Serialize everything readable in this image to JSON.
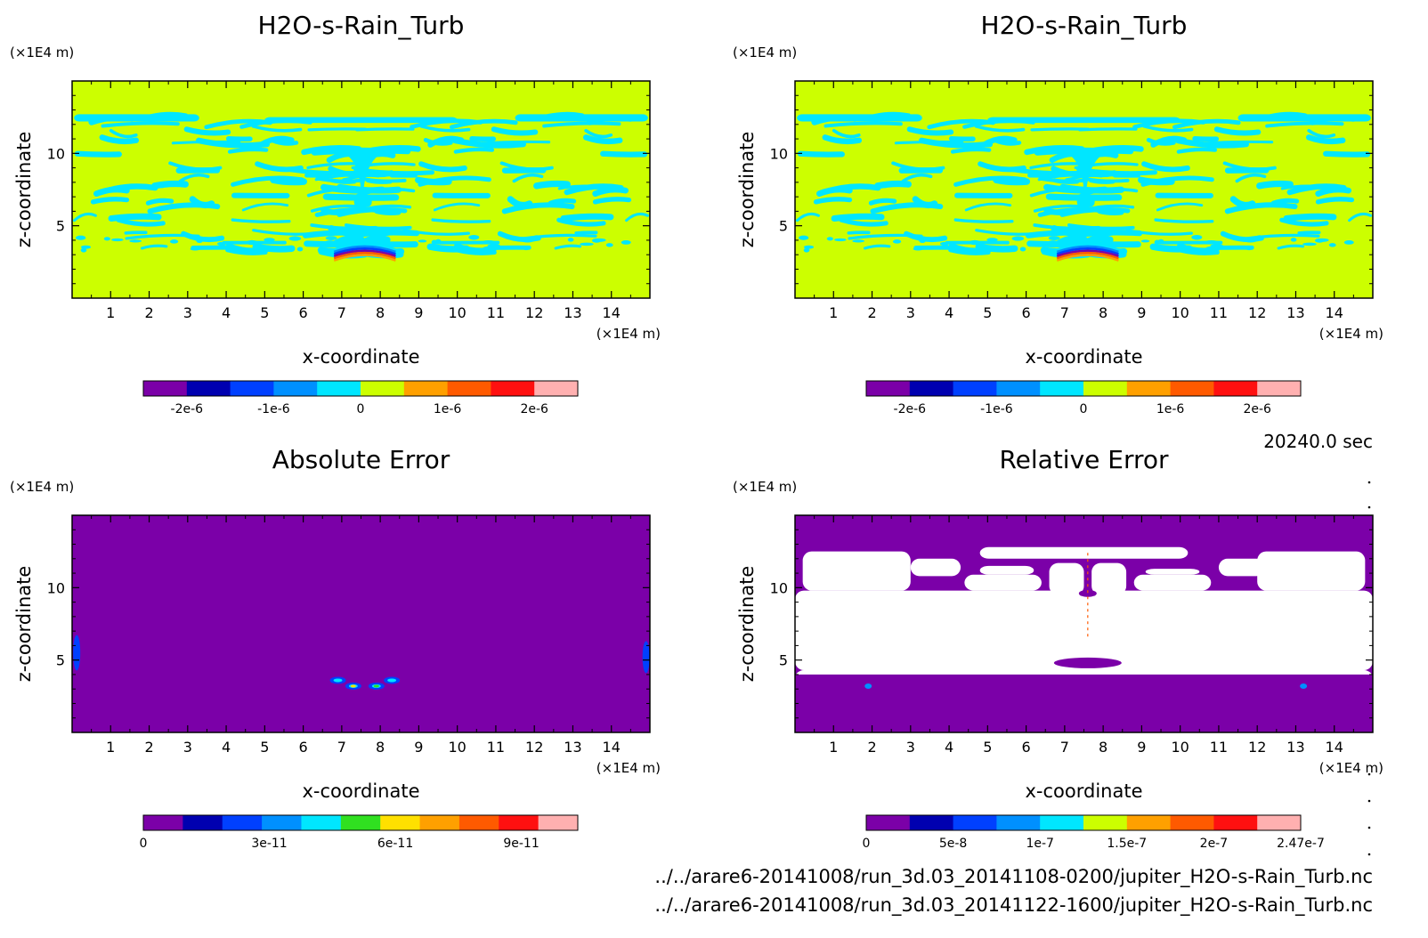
{
  "chart_data": [
    {
      "type": "heatmap",
      "title": "H2O-s-Rain_Turb",
      "xlabel": "x-coordinate",
      "ylabel": "z-coordinate",
      "x_unit": "(×1E4 m)",
      "y_unit": "(×1E4 m)",
      "xlim": [
        0,
        15
      ],
      "ylim": [
        0,
        15
      ],
      "x_ticks": [
        "1",
        "2",
        "3",
        "4",
        "5",
        "6",
        "7",
        "8",
        "9",
        "10",
        "11",
        "12",
        "13",
        "14"
      ],
      "y_ticks": [
        "5",
        "10"
      ],
      "field": "turb",
      "colorbar": {
        "colors": [
          "#7b00a8",
          "#0000b0",
          "#0040ff",
          "#0090ff",
          "#00e6ff",
          "#ccff00",
          "#ffa000",
          "#ff5a00",
          "#ff1010",
          "#ffb0b0"
        ],
        "tick_labels": [
          "-2e-6",
          "-1e-6",
          "0",
          "1e-6",
          "2e-6"
        ],
        "tick_fraction": [
          0.1,
          0.3,
          0.5,
          0.7,
          0.9
        ]
      }
    },
    {
      "type": "heatmap",
      "title": "H2O-s-Rain_Turb",
      "xlabel": "x-coordinate",
      "ylabel": "z-coordinate",
      "x_unit": "(×1E4 m)",
      "y_unit": "(×1E4 m)",
      "xlim": [
        0,
        15
      ],
      "ylim": [
        0,
        15
      ],
      "x_ticks": [
        "1",
        "2",
        "3",
        "4",
        "5",
        "6",
        "7",
        "8",
        "9",
        "10",
        "11",
        "12",
        "13",
        "14"
      ],
      "y_ticks": [
        "5",
        "10"
      ],
      "field": "turb",
      "colorbar": {
        "colors": [
          "#7b00a8",
          "#0000b0",
          "#0040ff",
          "#0090ff",
          "#00e6ff",
          "#ccff00",
          "#ffa000",
          "#ff5a00",
          "#ff1010",
          "#ffb0b0"
        ],
        "tick_labels": [
          "-2e-6",
          "-1e-6",
          "0",
          "1e-6",
          "2e-6"
        ],
        "tick_fraction": [
          0.1,
          0.3,
          0.5,
          0.7,
          0.9
        ]
      }
    },
    {
      "type": "heatmap",
      "title": "Absolute Error",
      "xlabel": "x-coordinate",
      "ylabel": "z-coordinate",
      "x_unit": "(×1E4 m)",
      "y_unit": "(×1E4 m)",
      "xlim": [
        0,
        15
      ],
      "ylim": [
        0,
        15
      ],
      "x_ticks": [
        "1",
        "2",
        "3",
        "4",
        "5",
        "6",
        "7",
        "8",
        "9",
        "10",
        "11",
        "12",
        "13",
        "14"
      ],
      "y_ticks": [
        "5",
        "10"
      ],
      "field": "abs",
      "colorbar": {
        "colors": [
          "#7b00a8",
          "#0000b0",
          "#0040ff",
          "#0090ff",
          "#00e6ff",
          "#30e020",
          "#ffe000",
          "#ffa000",
          "#ff5a00",
          "#ff1010",
          "#ffb0b0"
        ],
        "tick_labels": [
          "0",
          "3e-11",
          "6e-11",
          "9e-11"
        ],
        "tick_fraction": [
          0.0,
          0.29,
          0.58,
          0.87
        ]
      }
    },
    {
      "type": "heatmap",
      "title": "Relative Error",
      "xlabel": "x-coordinate",
      "ylabel": "z-coordinate",
      "x_unit": "(×1E4 m)",
      "y_unit": "(×1E4 m)",
      "xlim": [
        0,
        15
      ],
      "ylim": [
        0,
        15
      ],
      "x_ticks": [
        "1",
        "2",
        "3",
        "4",
        "5",
        "6",
        "7",
        "8",
        "9",
        "10",
        "11",
        "12",
        "13",
        "14"
      ],
      "y_ticks": [
        "5",
        "10"
      ],
      "field": "rel",
      "colorbar": {
        "colors": [
          "#7b00a8",
          "#0000b0",
          "#0040ff",
          "#0090ff",
          "#00e6ff",
          "#ccff00",
          "#ffa000",
          "#ff5a00",
          "#ff1010",
          "#ffb0b0"
        ],
        "tick_labels": [
          "0",
          "5e-8",
          "1e-7",
          "1.5e-7",
          "2e-7",
          "2.47e-7"
        ],
        "tick_fraction": [
          0.0,
          0.2,
          0.4,
          0.6,
          0.8,
          1.0
        ]
      }
    }
  ],
  "time_label": "20240.0 sec",
  "file_paths": [
    "../../arare6-20141008/run_3d.03_20141108-0200/jupiter_H2O-s-Rain_Turb.nc",
    "../../arare6-20141008/run_3d.03_20141122-1600/jupiter_H2O-s-Rain_Turb.nc"
  ]
}
